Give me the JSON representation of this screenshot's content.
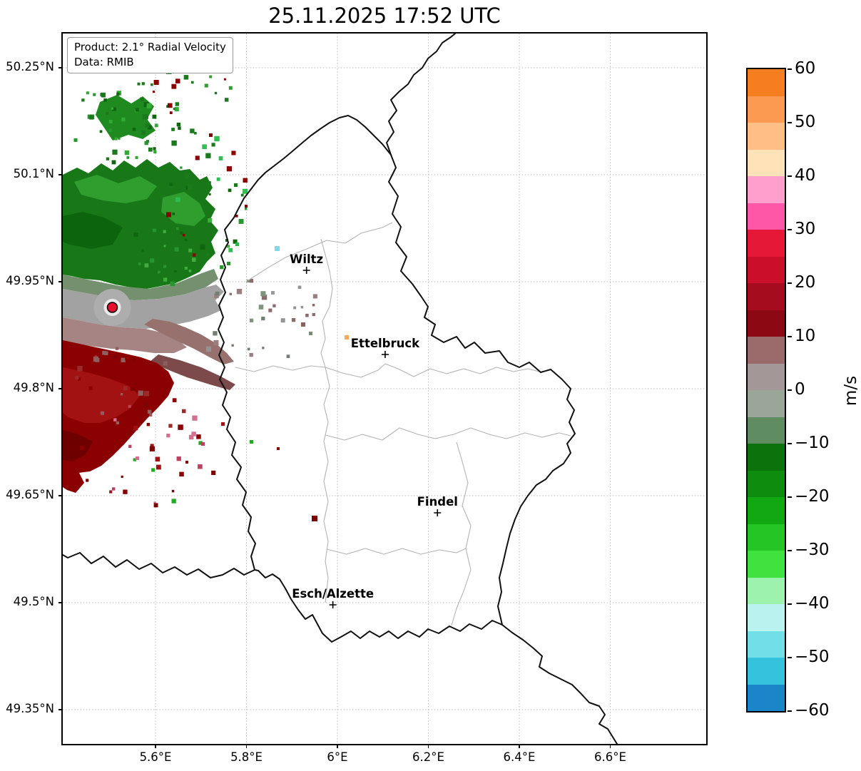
{
  "title": "25.11.2025 17:52 UTC",
  "info_box": {
    "product_line": "Product: 2.1° Radial Velocity",
    "data_line": "Data: RMIB"
  },
  "map": {
    "lon_min": 5.396,
    "lon_max": 6.811,
    "lat_min": 49.302,
    "lat_max": 50.298,
    "x_ticks": [
      {
        "lon": 5.6,
        "label": "5.6°E"
      },
      {
        "lon": 5.8,
        "label": "5.8°E"
      },
      {
        "lon": 6.0,
        "label": "6°E"
      },
      {
        "lon": 6.2,
        "label": "6.2°E"
      },
      {
        "lon": 6.4,
        "label": "6.4°E"
      },
      {
        "lon": 6.6,
        "label": "6.6°E"
      }
    ],
    "y_ticks": [
      {
        "lat": 50.25,
        "label": "50.25°N"
      },
      {
        "lat": 50.1,
        "label": "50.1°N"
      },
      {
        "lat": 49.95,
        "label": "49.95°N"
      },
      {
        "lat": 49.8,
        "label": "49.8°N"
      },
      {
        "lat": 49.65,
        "label": "49.65°N"
      },
      {
        "lat": 49.5,
        "label": "49.5°N"
      },
      {
        "lat": 49.35,
        "label": "49.35°N"
      }
    ],
    "cities": [
      {
        "name": "Wiltz",
        "lon": 5.932,
        "lat": 49.966
      },
      {
        "name": "Ettelbruck",
        "lon": 6.105,
        "lat": 49.848
      },
      {
        "name": "Findel",
        "lon": 6.22,
        "lat": 49.626
      },
      {
        "name": "Esch/Alzette",
        "lon": 5.99,
        "lat": 49.497
      }
    ],
    "radar_site": {
      "lon": 5.505,
      "lat": 49.914,
      "marker_color": "#e8112d"
    }
  },
  "colorbar": {
    "label": "m/s",
    "value_max": 60,
    "value_min": -60,
    "ticks": [
      {
        "value": 60,
        "label": "60"
      },
      {
        "value": 50,
        "label": "50"
      },
      {
        "value": 40,
        "label": "40"
      },
      {
        "value": 30,
        "label": "30"
      },
      {
        "value": 20,
        "label": "20"
      },
      {
        "value": 10,
        "label": "10"
      },
      {
        "value": 0,
        "label": "0"
      },
      {
        "value": -10,
        "label": "−10"
      },
      {
        "value": -20,
        "label": "−20"
      },
      {
        "value": -30,
        "label": "−30"
      },
      {
        "value": -40,
        "label": "−40"
      },
      {
        "value": -50,
        "label": "−50"
      },
      {
        "value": -60,
        "label": "−60"
      }
    ],
    "segments": [
      {
        "from": 55,
        "to": 60,
        "color": "#f57e20"
      },
      {
        "from": 50,
        "to": 55,
        "color": "#fb9a50"
      },
      {
        "from": 45,
        "to": 50,
        "color": "#ffbe85"
      },
      {
        "from": 40,
        "to": 45,
        "color": "#ffe2b8"
      },
      {
        "from": 35,
        "to": 40,
        "color": "#ff9fce"
      },
      {
        "from": 30,
        "to": 35,
        "color": "#ff57a8"
      },
      {
        "from": 25,
        "to": 30,
        "color": "#e51937"
      },
      {
        "from": 20,
        "to": 25,
        "color": "#cb0f2b"
      },
      {
        "from": 15,
        "to": 20,
        "color": "#a50d1e"
      },
      {
        "from": 10,
        "to": 15,
        "color": "#8c0813"
      },
      {
        "from": 5,
        "to": 10,
        "color": "#9b6b6b"
      },
      {
        "from": 0,
        "to": 5,
        "color": "#a49797"
      },
      {
        "from": -5,
        "to": 0,
        "color": "#9aa697"
      },
      {
        "from": -10,
        "to": -5,
        "color": "#5f8c61"
      },
      {
        "from": -15,
        "to": -10,
        "color": "#0c720c"
      },
      {
        "from": -20,
        "to": -15,
        "color": "#0e8c0e"
      },
      {
        "from": -25,
        "to": -20,
        "color": "#12a812"
      },
      {
        "from": -30,
        "to": -25,
        "color": "#25c525"
      },
      {
        "from": -35,
        "to": -30,
        "color": "#3fe23f"
      },
      {
        "from": -40,
        "to": -35,
        "color": "#9df2ae"
      },
      {
        "from": -45,
        "to": -40,
        "color": "#baf2ef"
      },
      {
        "from": -50,
        "to": -45,
        "color": "#72dfe8"
      },
      {
        "from": -55,
        "to": -50,
        "color": "#35c2dd"
      },
      {
        "from": -60,
        "to": -55,
        "color": "#1a86c9"
      }
    ]
  }
}
